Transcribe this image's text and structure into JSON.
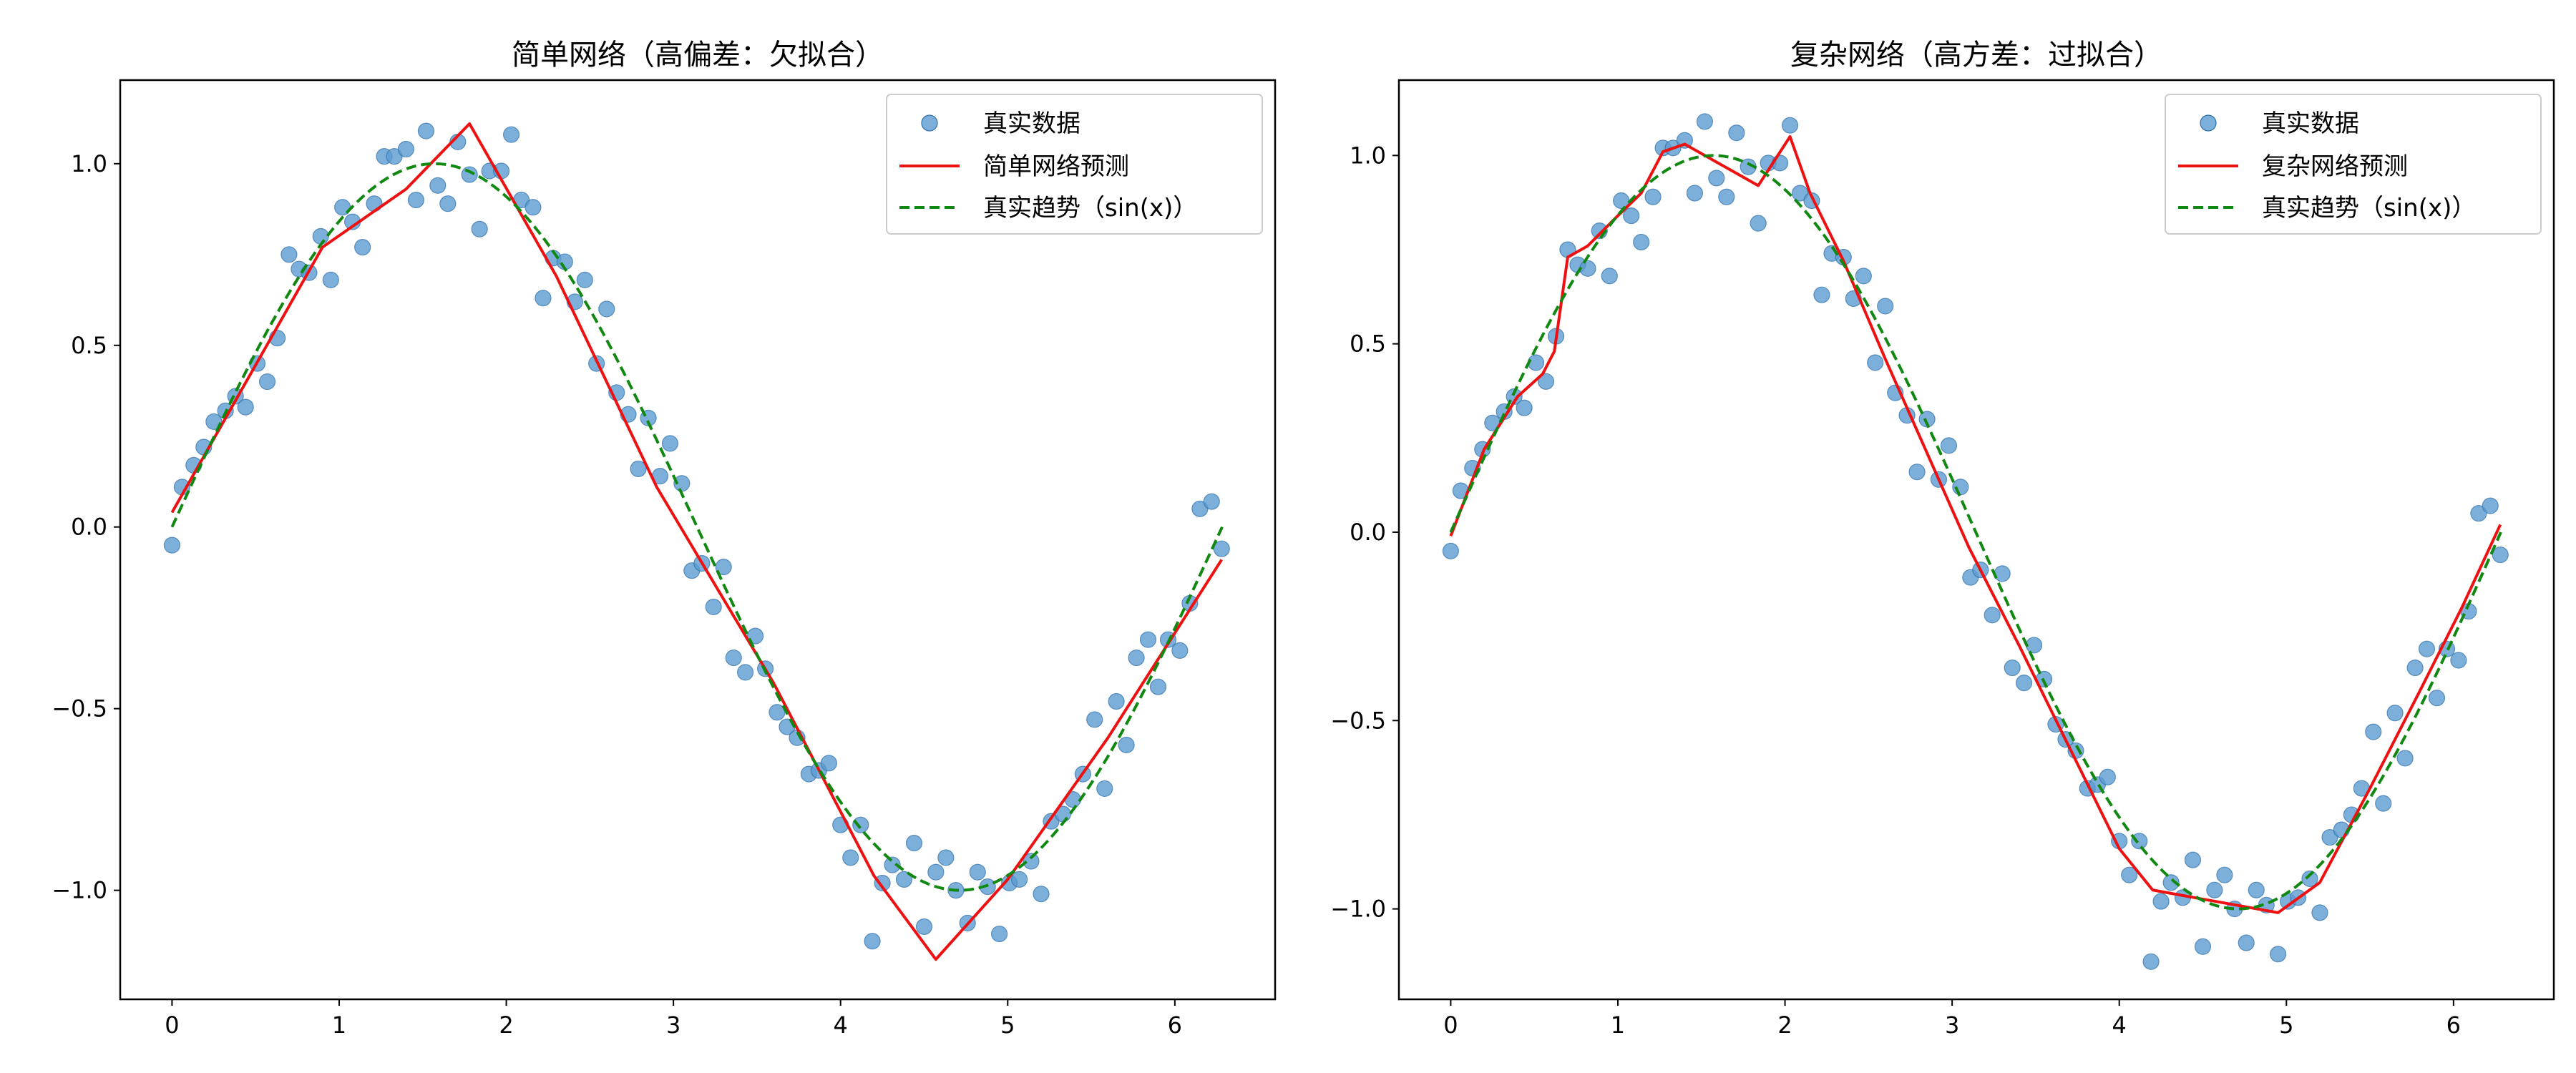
{
  "chart_data": [
    {
      "type": "scatter",
      "title": "简单网络（高偏差：欠拟合）",
      "xlabel": "",
      "ylabel": "",
      "xlim": [
        -0.31,
        6.6
      ],
      "ylim": [
        -1.3,
        1.23
      ],
      "xticks": [
        0,
        1,
        2,
        3,
        4,
        5,
        6
      ],
      "yticks": [
        -1.0,
        -0.5,
        0.0,
        0.5,
        1.0
      ],
      "xtick_labels": [
        "0",
        "1",
        "2",
        "3",
        "4",
        "5",
        "6"
      ],
      "ytick_labels": [
        "−1.0",
        "−0.5",
        "0.0",
        "0.5",
        "1.0"
      ],
      "grid": false,
      "legend_position": "upper right",
      "series": [
        {
          "name": "真实数据",
          "kind": "scatter",
          "color": "#5b9bd0",
          "points": [
            [
              0.0,
              -0.05
            ],
            [
              0.06,
              0.11
            ],
            [
              0.13,
              0.17
            ],
            [
              0.19,
              0.22
            ],
            [
              0.25,
              0.29
            ],
            [
              0.32,
              0.32
            ],
            [
              0.38,
              0.36
            ],
            [
              0.44,
              0.33
            ],
            [
              0.51,
              0.45
            ],
            [
              0.57,
              0.4
            ],
            [
              0.63,
              0.52
            ],
            [
              0.7,
              0.75
            ],
            [
              0.76,
              0.71
            ],
            [
              0.82,
              0.7
            ],
            [
              0.89,
              0.8
            ],
            [
              0.95,
              0.68
            ],
            [
              1.02,
              0.88
            ],
            [
              1.08,
              0.84
            ],
            [
              1.14,
              0.77
            ],
            [
              1.21,
              0.89
            ],
            [
              1.27,
              1.02
            ],
            [
              1.33,
              1.02
            ],
            [
              1.4,
              1.04
            ],
            [
              1.46,
              0.9
            ],
            [
              1.52,
              1.09
            ],
            [
              1.59,
              0.94
            ],
            [
              1.65,
              0.89
            ],
            [
              1.71,
              1.06
            ],
            [
              1.78,
              0.97
            ],
            [
              1.84,
              0.82
            ],
            [
              1.9,
              0.98
            ],
            [
              1.97,
              0.98
            ],
            [
              2.03,
              1.08
            ],
            [
              2.09,
              0.9
            ],
            [
              2.16,
              0.88
            ],
            [
              2.22,
              0.63
            ],
            [
              2.28,
              0.74
            ],
            [
              2.35,
              0.73
            ],
            [
              2.41,
              0.62
            ],
            [
              2.47,
              0.68
            ],
            [
              2.54,
              0.45
            ],
            [
              2.6,
              0.6
            ],
            [
              2.66,
              0.37
            ],
            [
              2.73,
              0.31
            ],
            [
              2.79,
              0.16
            ],
            [
              2.85,
              0.3
            ],
            [
              2.92,
              0.14
            ],
            [
              2.98,
              0.23
            ],
            [
              3.05,
              0.12
            ],
            [
              3.11,
              -0.12
            ],
            [
              3.17,
              -0.1
            ],
            [
              3.24,
              -0.22
            ],
            [
              3.3,
              -0.11
            ],
            [
              3.36,
              -0.36
            ],
            [
              3.43,
              -0.4
            ],
            [
              3.49,
              -0.3
            ],
            [
              3.55,
              -0.39
            ],
            [
              3.62,
              -0.51
            ],
            [
              3.68,
              -0.55
            ],
            [
              3.74,
              -0.58
            ],
            [
              3.81,
              -0.68
            ],
            [
              3.87,
              -0.67
            ],
            [
              3.93,
              -0.65
            ],
            [
              4.0,
              -0.82
            ],
            [
              4.06,
              -0.91
            ],
            [
              4.12,
              -0.82
            ],
            [
              4.19,
              -1.14
            ],
            [
              4.25,
              -0.98
            ],
            [
              4.31,
              -0.93
            ],
            [
              4.38,
              -0.97
            ],
            [
              4.44,
              -0.87
            ],
            [
              4.5,
              -1.1
            ],
            [
              4.57,
              -0.95
            ],
            [
              4.63,
              -0.91
            ],
            [
              4.69,
              -1.0
            ],
            [
              4.76,
              -1.09
            ],
            [
              4.82,
              -0.95
            ],
            [
              4.88,
              -0.99
            ],
            [
              4.95,
              -1.12
            ],
            [
              5.01,
              -0.98
            ],
            [
              5.07,
              -0.97
            ],
            [
              5.14,
              -0.92
            ],
            [
              5.2,
              -1.01
            ],
            [
              5.26,
              -0.81
            ],
            [
              5.33,
              -0.79
            ],
            [
              5.39,
              -0.75
            ],
            [
              5.45,
              -0.68
            ],
            [
              5.52,
              -0.53
            ],
            [
              5.58,
              -0.72
            ],
            [
              5.65,
              -0.48
            ],
            [
              5.71,
              -0.6
            ],
            [
              5.77,
              -0.36
            ],
            [
              5.84,
              -0.31
            ],
            [
              5.9,
              -0.44
            ],
            [
              5.96,
              -0.31
            ],
            [
              6.03,
              -0.34
            ],
            [
              6.09,
              -0.21
            ],
            [
              6.15,
              0.05
            ],
            [
              6.22,
              0.07
            ],
            [
              6.28,
              -0.06
            ]
          ]
        },
        {
          "name": "简单网络预测",
          "kind": "line",
          "color": "#ee1111",
          "dash": "solid",
          "points": [
            [
              0.0,
              0.04
            ],
            [
              0.9,
              0.77
            ],
            [
              1.4,
              0.93
            ],
            [
              1.78,
              1.11
            ],
            [
              2.3,
              0.69
            ],
            [
              2.9,
              0.11
            ],
            [
              3.6,
              -0.43
            ],
            [
              4.2,
              -0.96
            ],
            [
              4.57,
              -1.19
            ],
            [
              5.0,
              -0.97
            ],
            [
              5.6,
              -0.58
            ],
            [
              6.28,
              -0.09
            ]
          ]
        },
        {
          "name": "真实趋势（sin(x)）",
          "kind": "line",
          "color": "#118811",
          "dash": "dashed",
          "function": "sin",
          "x_range": [
            0,
            6.2832
          ]
        }
      ]
    },
    {
      "type": "scatter",
      "title": "复杂网络（高方差：过拟合）",
      "xlabel": "",
      "ylabel": "",
      "xlim": [
        -0.31,
        6.6
      ],
      "ylim": [
        -1.24,
        1.2
      ],
      "xticks": [
        0,
        1,
        2,
        3,
        4,
        5,
        6
      ],
      "yticks": [
        -1.0,
        -0.5,
        0.0,
        0.5,
        1.0
      ],
      "xtick_labels": [
        "0",
        "1",
        "2",
        "3",
        "4",
        "5",
        "6"
      ],
      "ytick_labels": [
        "−1.0",
        "−0.5",
        "0.0",
        "0.5",
        "1.0"
      ],
      "grid": false,
      "legend_position": "upper right",
      "series": [
        {
          "name": "真实数据",
          "kind": "scatter",
          "color": "#5b9bd0",
          "points": [
            [
              0.0,
              -0.05
            ],
            [
              0.06,
              0.11
            ],
            [
              0.13,
              0.17
            ],
            [
              0.19,
              0.22
            ],
            [
              0.25,
              0.29
            ],
            [
              0.32,
              0.32
            ],
            [
              0.38,
              0.36
            ],
            [
              0.44,
              0.33
            ],
            [
              0.51,
              0.45
            ],
            [
              0.57,
              0.4
            ],
            [
              0.63,
              0.52
            ],
            [
              0.7,
              0.75
            ],
            [
              0.76,
              0.71
            ],
            [
              0.82,
              0.7
            ],
            [
              0.89,
              0.8
            ],
            [
              0.95,
              0.68
            ],
            [
              1.02,
              0.88
            ],
            [
              1.08,
              0.84
            ],
            [
              1.14,
              0.77
            ],
            [
              1.21,
              0.89
            ],
            [
              1.27,
              1.02
            ],
            [
              1.33,
              1.02
            ],
            [
              1.4,
              1.04
            ],
            [
              1.46,
              0.9
            ],
            [
              1.52,
              1.09
            ],
            [
              1.59,
              0.94
            ],
            [
              1.65,
              0.89
            ],
            [
              1.71,
              1.06
            ],
            [
              1.78,
              0.97
            ],
            [
              1.84,
              0.82
            ],
            [
              1.9,
              0.98
            ],
            [
              1.97,
              0.98
            ],
            [
              2.03,
              1.08
            ],
            [
              2.09,
              0.9
            ],
            [
              2.16,
              0.88
            ],
            [
              2.22,
              0.63
            ],
            [
              2.28,
              0.74
            ],
            [
              2.35,
              0.73
            ],
            [
              2.41,
              0.62
            ],
            [
              2.47,
              0.68
            ],
            [
              2.54,
              0.45
            ],
            [
              2.6,
              0.6
            ],
            [
              2.66,
              0.37
            ],
            [
              2.73,
              0.31
            ],
            [
              2.79,
              0.16
            ],
            [
              2.85,
              0.3
            ],
            [
              2.92,
              0.14
            ],
            [
              2.98,
              0.23
            ],
            [
              3.05,
              0.12
            ],
            [
              3.11,
              -0.12
            ],
            [
              3.17,
              -0.1
            ],
            [
              3.24,
              -0.22
            ],
            [
              3.3,
              -0.11
            ],
            [
              3.36,
              -0.36
            ],
            [
              3.43,
              -0.4
            ],
            [
              3.49,
              -0.3
            ],
            [
              3.55,
              -0.39
            ],
            [
              3.62,
              -0.51
            ],
            [
              3.68,
              -0.55
            ],
            [
              3.74,
              -0.58
            ],
            [
              3.81,
              -0.68
            ],
            [
              3.87,
              -0.67
            ],
            [
              3.93,
              -0.65
            ],
            [
              4.0,
              -0.82
            ],
            [
              4.06,
              -0.91
            ],
            [
              4.12,
              -0.82
            ],
            [
              4.19,
              -1.14
            ],
            [
              4.25,
              -0.98
            ],
            [
              4.31,
              -0.93
            ],
            [
              4.38,
              -0.97
            ],
            [
              4.44,
              -0.87
            ],
            [
              4.5,
              -1.1
            ],
            [
              4.57,
              -0.95
            ],
            [
              4.63,
              -0.91
            ],
            [
              4.69,
              -1.0
            ],
            [
              4.76,
              -1.09
            ],
            [
              4.82,
              -0.95
            ],
            [
              4.88,
              -0.99
            ],
            [
              4.95,
              -1.12
            ],
            [
              5.01,
              -0.98
            ],
            [
              5.07,
              -0.97
            ],
            [
              5.14,
              -0.92
            ],
            [
              5.2,
              -1.01
            ],
            [
              5.26,
              -0.81
            ],
            [
              5.33,
              -0.79
            ],
            [
              5.39,
              -0.75
            ],
            [
              5.45,
              -0.68
            ],
            [
              5.52,
              -0.53
            ],
            [
              5.58,
              -0.72
            ],
            [
              5.65,
              -0.48
            ],
            [
              5.71,
              -0.6
            ],
            [
              5.77,
              -0.36
            ],
            [
              5.84,
              -0.31
            ],
            [
              5.9,
              -0.44
            ],
            [
              5.96,
              -0.31
            ],
            [
              6.03,
              -0.34
            ],
            [
              6.09,
              -0.21
            ],
            [
              6.15,
              0.05
            ],
            [
              6.22,
              0.07
            ],
            [
              6.28,
              -0.06
            ]
          ]
        },
        {
          "name": "复杂网络预测",
          "kind": "line",
          "color": "#ee1111",
          "dash": "solid",
          "points": [
            [
              0.0,
              -0.01
            ],
            [
              0.2,
              0.22
            ],
            [
              0.4,
              0.36
            ],
            [
              0.55,
              0.42
            ],
            [
              0.62,
              0.48
            ],
            [
              0.7,
              0.73
            ],
            [
              0.82,
              0.76
            ],
            [
              1.0,
              0.84
            ],
            [
              1.14,
              0.9
            ],
            [
              1.27,
              1.01
            ],
            [
              1.4,
              1.03
            ],
            [
              1.6,
              0.98
            ],
            [
              1.84,
              0.92
            ],
            [
              2.03,
              1.05
            ],
            [
              2.15,
              0.9
            ],
            [
              2.35,
              0.72
            ],
            [
              2.6,
              0.46
            ],
            [
              2.85,
              0.21
            ],
            [
              3.1,
              -0.04
            ],
            [
              3.4,
              -0.3
            ],
            [
              3.7,
              -0.57
            ],
            [
              4.0,
              -0.84
            ],
            [
              4.2,
              -0.95
            ],
            [
              4.45,
              -0.97
            ],
            [
              4.7,
              -0.99
            ],
            [
              4.95,
              -1.01
            ],
            [
              5.2,
              -0.93
            ],
            [
              5.5,
              -0.68
            ],
            [
              5.8,
              -0.42
            ],
            [
              6.05,
              -0.2
            ],
            [
              6.28,
              0.02
            ]
          ]
        },
        {
          "name": "真实趋势（sin(x)）",
          "kind": "line",
          "color": "#118811",
          "dash": "dashed",
          "function": "sin",
          "x_range": [
            0,
            6.2832
          ]
        }
      ]
    }
  ]
}
